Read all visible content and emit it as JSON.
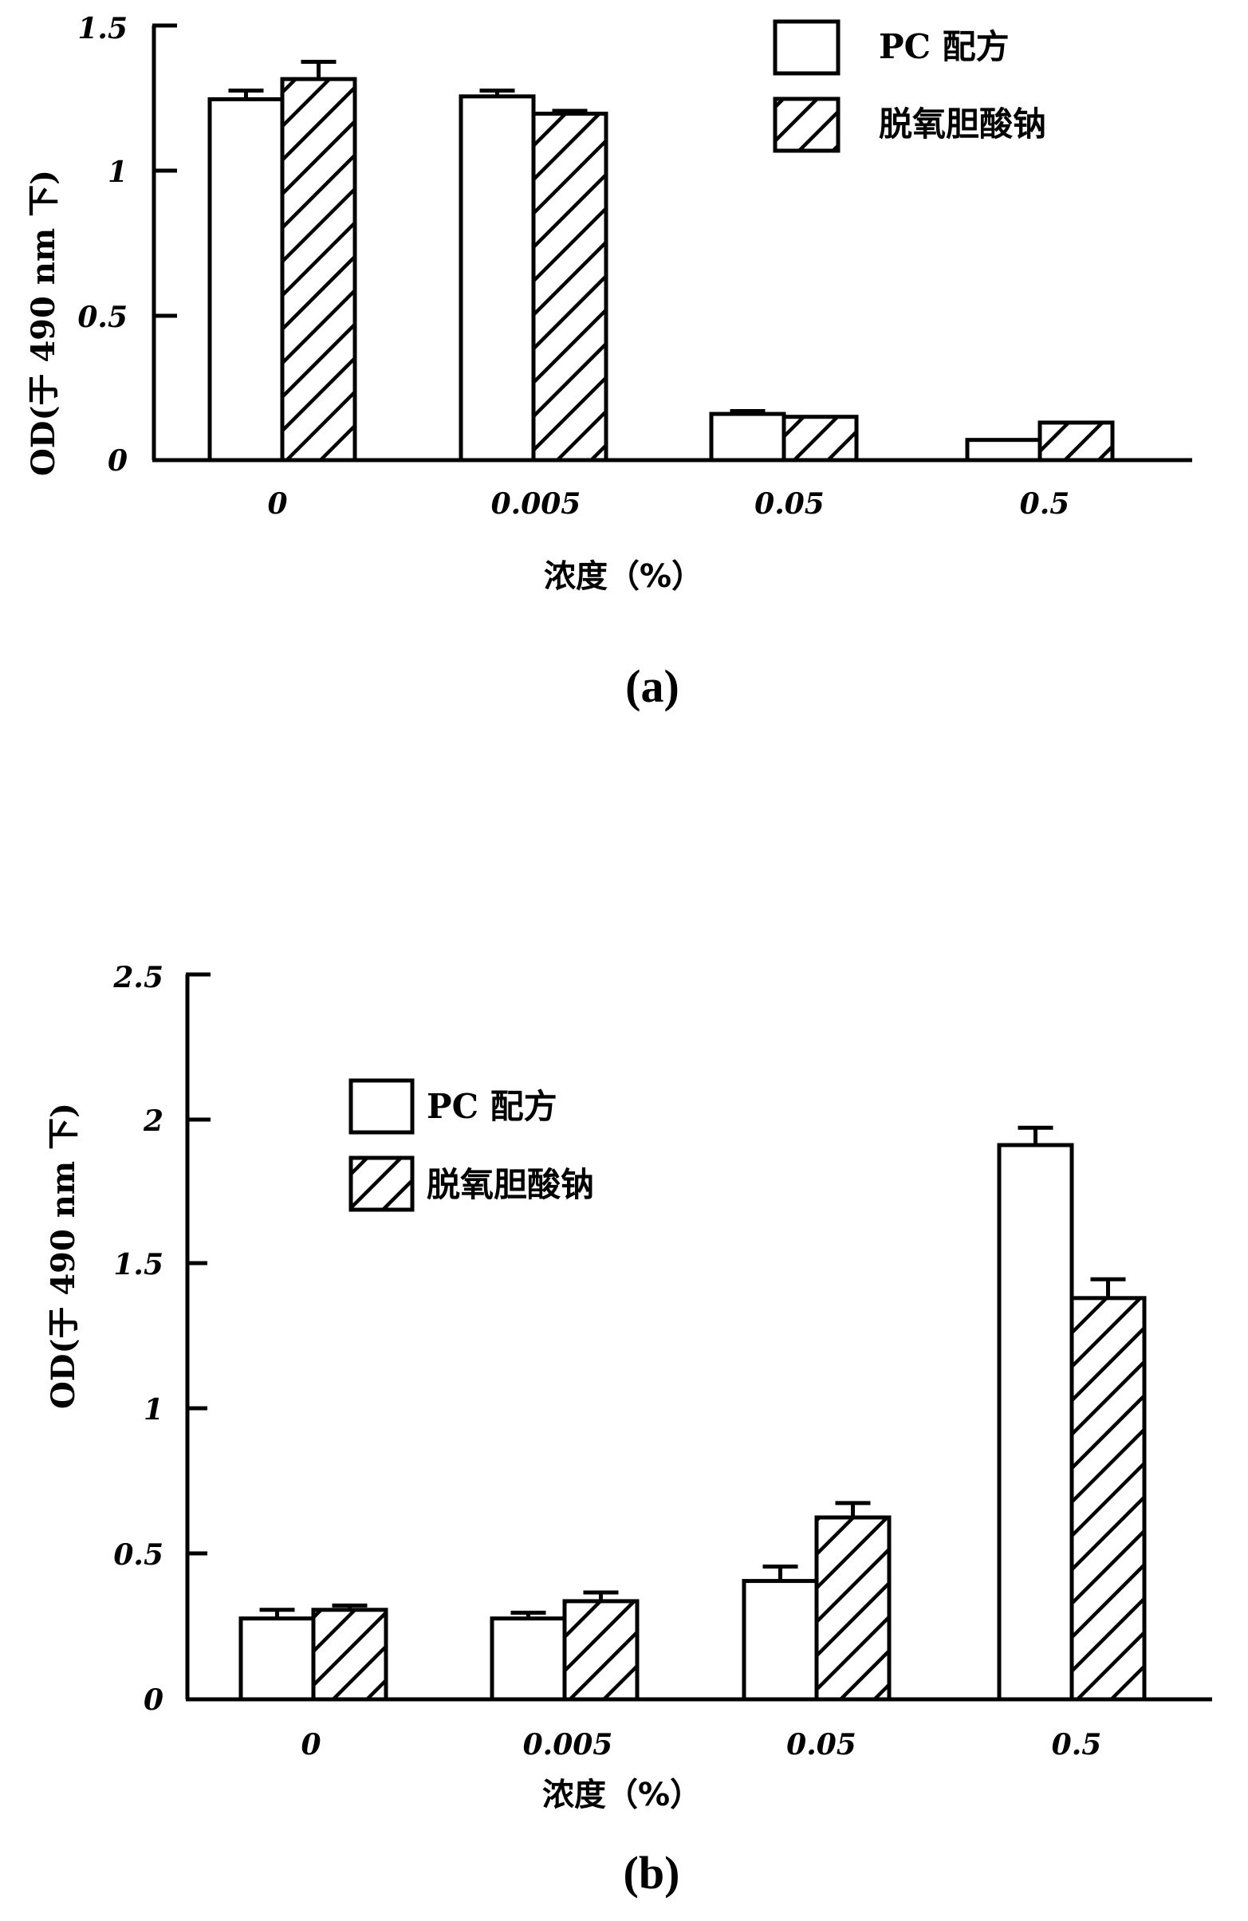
{
  "figure": {
    "panels": [
      {
        "id": "a",
        "panel_label": "(a)",
        "ylabel": "OD(于 490 nm 下)",
        "xlabel": "浓度（%）",
        "yticks": [
          "0",
          "0.5",
          "1",
          "1.5"
        ],
        "categories": [
          "0",
          "0.005",
          "0.05",
          "0.5"
        ],
        "legend": [
          "PC 配方",
          "脱氧胆酸钠"
        ]
      },
      {
        "id": "b",
        "panel_label": "(b)",
        "ylabel": "OD(于 490 nm 下)",
        "xlabel": "浓度（%）",
        "yticks": [
          "0",
          "0.5",
          "1",
          "1.5",
          "2",
          "2.5"
        ],
        "categories": [
          "0",
          "0.005",
          "0.05",
          "0.5"
        ],
        "legend": [
          "PC 配方",
          "脱氧胆酸钠"
        ]
      }
    ]
  },
  "chart_data": [
    {
      "type": "bar",
      "title": "(a)",
      "xlabel": "浓度（%）",
      "ylabel": "OD(于 490 nm 下)",
      "categories": [
        "0",
        "0.005",
        "0.05",
        "0.5"
      ],
      "series": [
        {
          "name": "PC 配方",
          "pattern": "white",
          "values": [
            1.25,
            1.26,
            0.16,
            0.07
          ],
          "errors": [
            0.03,
            0.02,
            0.01,
            0.0
          ]
        },
        {
          "name": "脱氧胆酸钠",
          "pattern": "hatched",
          "values": [
            1.32,
            1.2,
            0.15,
            0.13
          ],
          "errors": [
            0.06,
            0.01,
            0.0,
            0.0
          ]
        }
      ],
      "ylim": [
        0,
        1.5
      ],
      "yticks": [
        0,
        0.5,
        1,
        1.5
      ],
      "grid": false,
      "legend_position": "upper right"
    },
    {
      "type": "bar",
      "title": "(b)",
      "xlabel": "浓度（%）",
      "ylabel": "OD(于 490 nm 下)",
      "categories": [
        "0",
        "0.005",
        "0.05",
        "0.5"
      ],
      "series": [
        {
          "name": "PC 配方",
          "pattern": "white",
          "values": [
            0.28,
            0.28,
            0.41,
            1.92
          ],
          "errors": [
            0.03,
            0.02,
            0.05,
            0.06
          ]
        },
        {
          "name": "脱氧胆酸钠",
          "pattern": "hatched",
          "values": [
            0.31,
            0.34,
            0.63,
            1.39
          ],
          "errors": [
            0.015,
            0.03,
            0.05,
            0.065
          ]
        }
      ],
      "ylim": [
        0,
        2.5
      ],
      "yticks": [
        0,
        0.5,
        1,
        1.5,
        2,
        2.5
      ],
      "grid": false,
      "legend_position": "upper left"
    }
  ]
}
